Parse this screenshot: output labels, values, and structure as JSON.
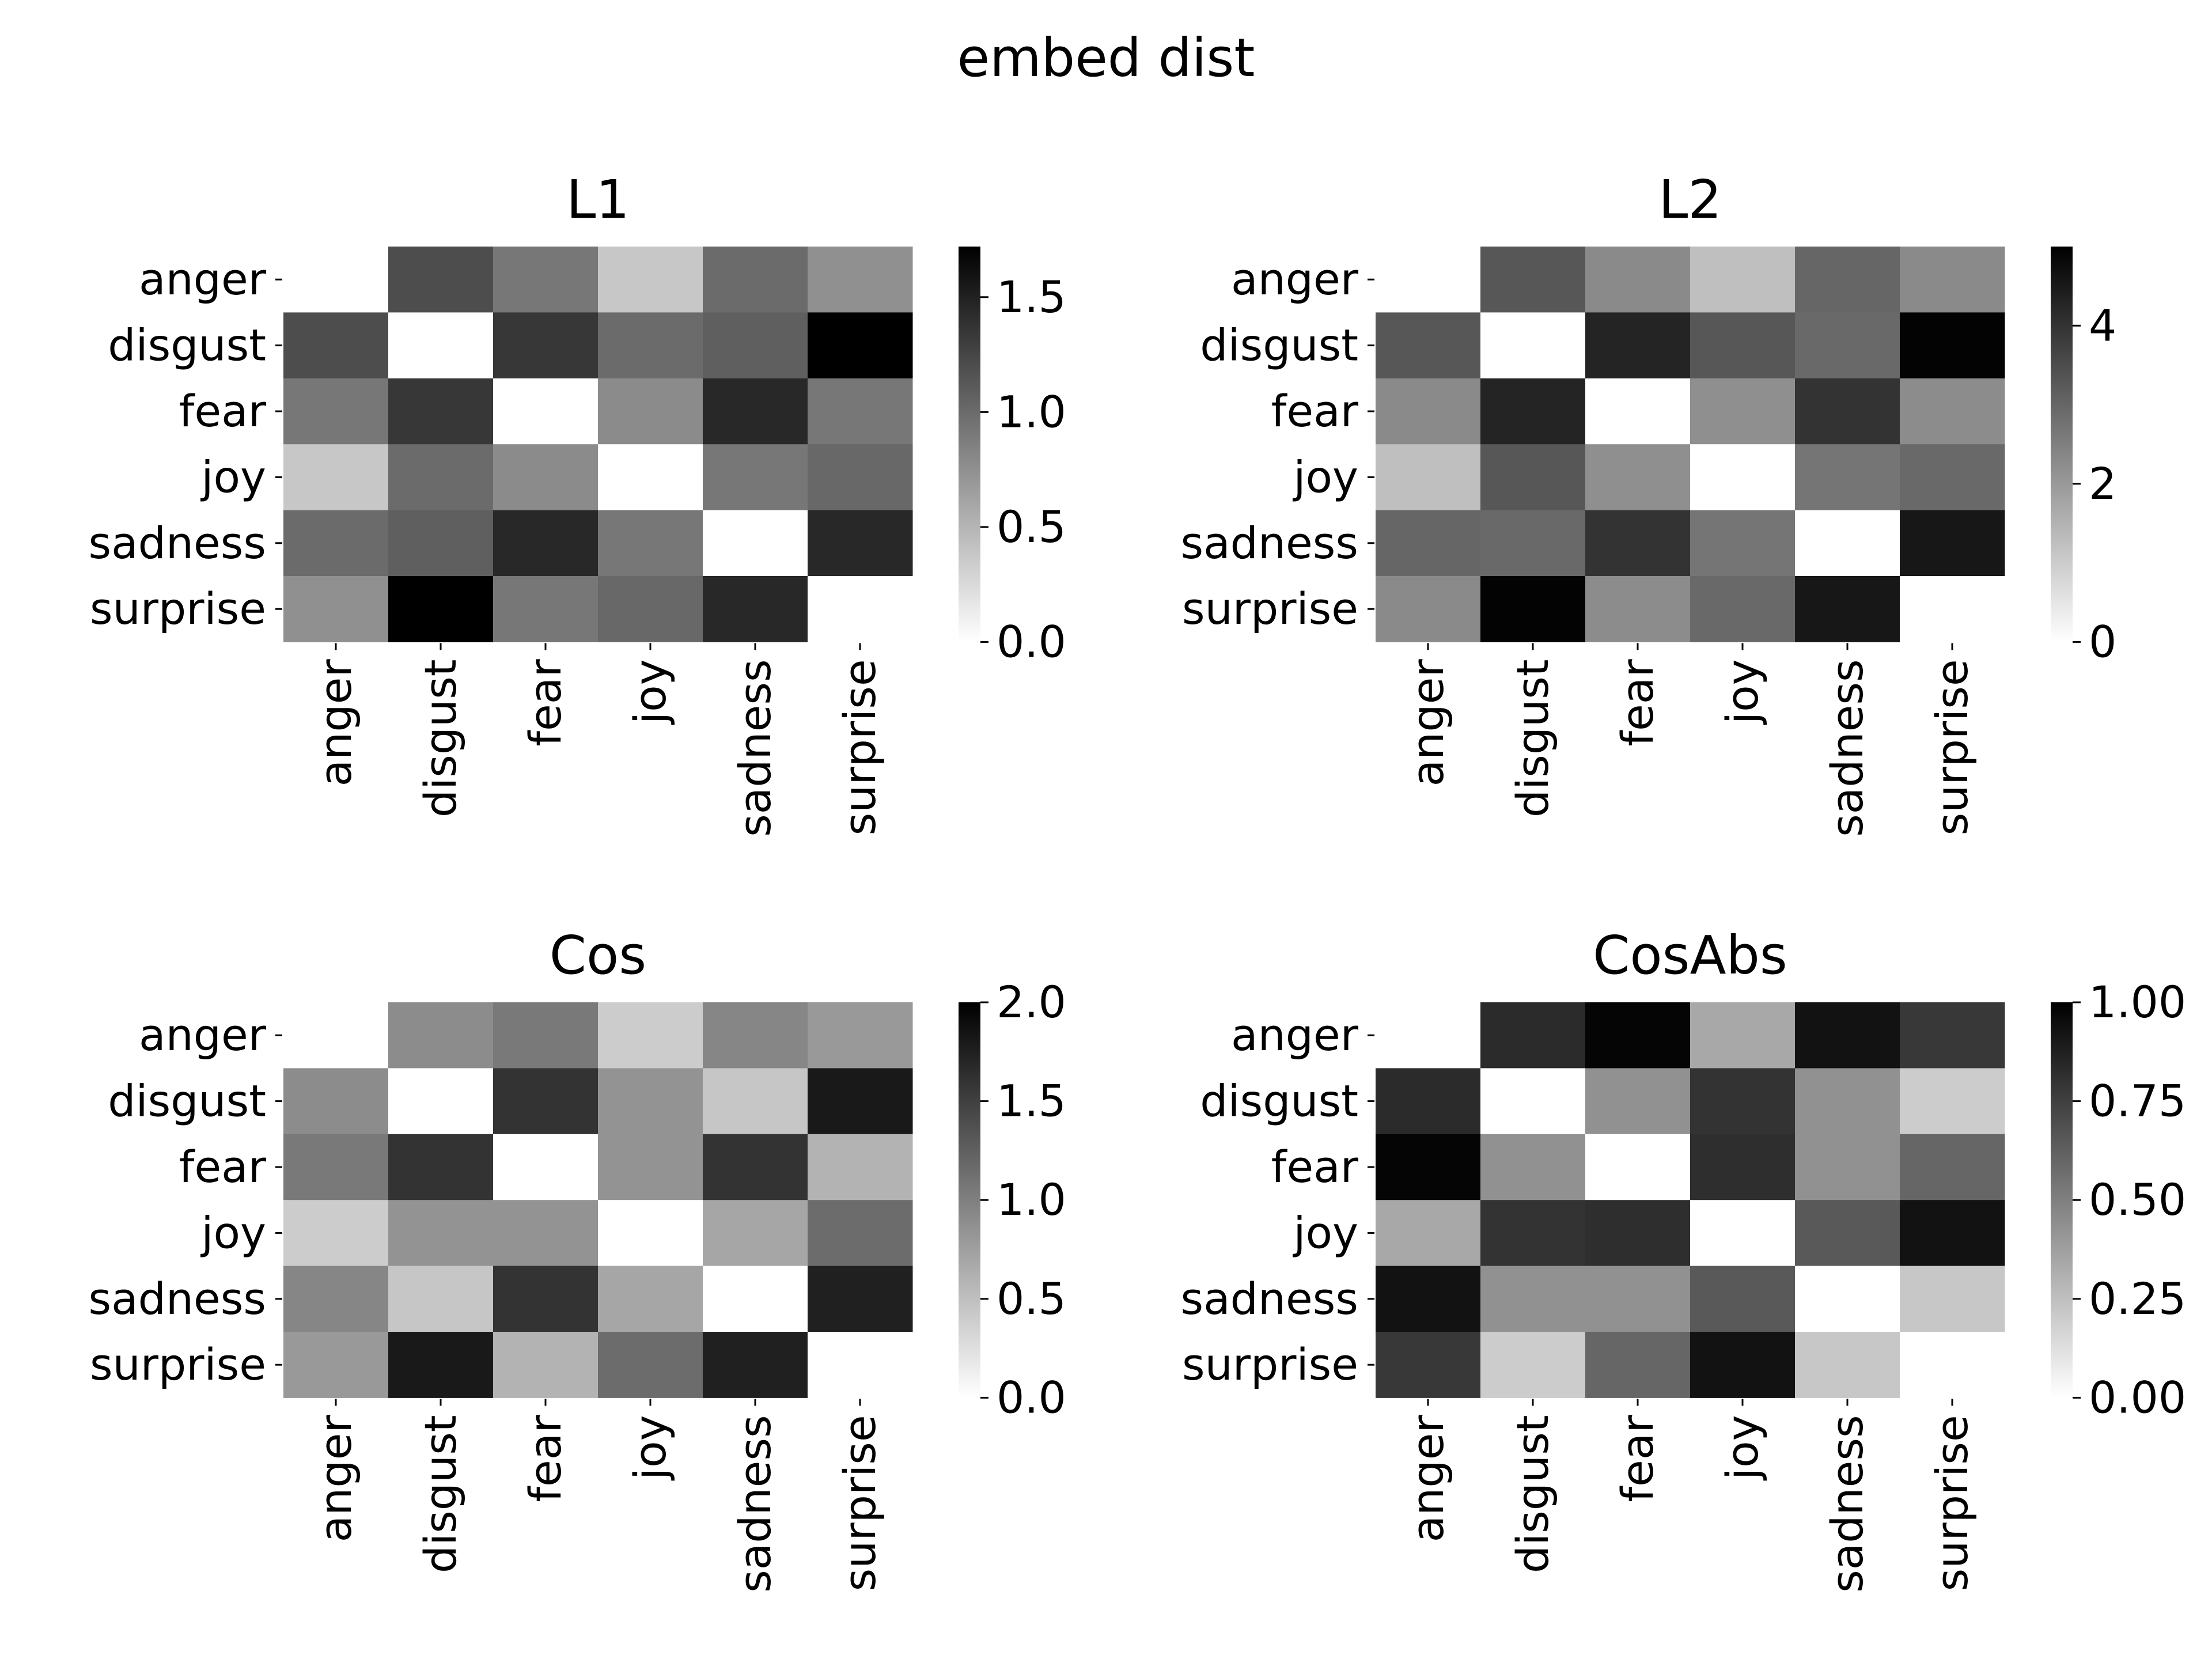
{
  "figure": {
    "suptitle": "embed dist"
  },
  "chart_data": [
    {
      "type": "heatmap",
      "title": "L1",
      "rows": [
        "anger",
        "disgust",
        "fear",
        "joy",
        "sadness",
        "surprise"
      ],
      "cols": [
        "anger",
        "disgust",
        "fear",
        "joy",
        "sadness",
        "surprise"
      ],
      "values": [
        [
          0.0,
          1.2,
          0.92,
          0.38,
          1.0,
          0.75
        ],
        [
          1.2,
          0.0,
          1.35,
          1.0,
          1.08,
          1.72
        ],
        [
          0.92,
          1.35,
          0.0,
          0.78,
          1.45,
          0.92
        ],
        [
          0.38,
          1.0,
          0.78,
          0.0,
          0.92,
          1.02
        ],
        [
          1.0,
          1.08,
          1.45,
          0.92,
          0.0,
          1.45
        ],
        [
          0.75,
          1.72,
          0.92,
          1.02,
          1.45,
          0.0
        ]
      ],
      "colorbar": {
        "vmin": 0.0,
        "vmax": 1.72,
        "ticks": [
          0.0,
          0.5,
          1.0,
          1.5
        ],
        "tick_labels": [
          "0.0",
          "0.5",
          "1.0",
          "1.5"
        ]
      },
      "colormap": "white-to-black"
    },
    {
      "type": "heatmap",
      "title": "L2",
      "rows": [
        "anger",
        "disgust",
        "fear",
        "joy",
        "sadness",
        "surprise"
      ],
      "cols": [
        "anger",
        "disgust",
        "fear",
        "joy",
        "sadness",
        "surprise"
      ],
      "values": [
        [
          0.0,
          3.3,
          2.3,
          1.25,
          3.0,
          2.3
        ],
        [
          3.3,
          0.0,
          4.3,
          3.3,
          2.95,
          4.95
        ],
        [
          2.3,
          4.3,
          0.0,
          2.2,
          4.0,
          2.25
        ],
        [
          1.25,
          3.3,
          2.2,
          0.0,
          2.7,
          2.95
        ],
        [
          3.0,
          2.95,
          4.0,
          2.7,
          0.0,
          4.55
        ],
        [
          2.3,
          4.95,
          2.25,
          2.95,
          4.55,
          0.0
        ]
      ],
      "colorbar": {
        "vmin": 0,
        "vmax": 5.0,
        "ticks": [
          0,
          2,
          4
        ],
        "tick_labels": [
          "0",
          "2",
          "4"
        ]
      },
      "colormap": "white-to-black"
    },
    {
      "type": "heatmap",
      "title": "Cos",
      "rows": [
        "anger",
        "disgust",
        "fear",
        "joy",
        "sadness",
        "surprise"
      ],
      "cols": [
        "anger",
        "disgust",
        "fear",
        "joy",
        "sadness",
        "surprise"
      ],
      "values": [
        [
          0.0,
          0.9,
          1.05,
          0.4,
          0.95,
          0.8
        ],
        [
          0.9,
          0.0,
          1.6,
          0.85,
          0.45,
          1.8
        ],
        [
          1.05,
          1.6,
          0.0,
          0.85,
          1.6,
          0.6
        ],
        [
          0.4,
          0.85,
          0.85,
          0.0,
          0.7,
          1.15
        ],
        [
          0.95,
          0.45,
          1.6,
          0.7,
          0.0,
          1.75
        ],
        [
          0.8,
          1.8,
          0.6,
          1.15,
          1.75,
          0.0
        ]
      ],
      "colorbar": {
        "vmin": 0.0,
        "vmax": 2.0,
        "ticks": [
          0.0,
          0.5,
          1.0,
          1.5,
          2.0
        ],
        "tick_labels": [
          "0.0",
          "0.5",
          "1.0",
          "1.5",
          "2.0"
        ]
      },
      "colormap": "white-to-black"
    },
    {
      "type": "heatmap",
      "title": "CosAbs",
      "rows": [
        "anger",
        "disgust",
        "fear",
        "joy",
        "sadness",
        "surprise"
      ],
      "cols": [
        "anger",
        "disgust",
        "fear",
        "joy",
        "sadness",
        "surprise"
      ],
      "values": [
        [
          0.0,
          0.83,
          0.98,
          0.34,
          0.93,
          0.78
        ],
        [
          0.83,
          0.0,
          0.43,
          0.8,
          0.43,
          0.2
        ],
        [
          0.98,
          0.43,
          0.0,
          0.82,
          0.43,
          0.6
        ],
        [
          0.34,
          0.8,
          0.82,
          0.0,
          0.65,
          0.93
        ],
        [
          0.93,
          0.43,
          0.43,
          0.65,
          0.0,
          0.22
        ],
        [
          0.78,
          0.2,
          0.6,
          0.93,
          0.22,
          0.0
        ]
      ],
      "colorbar": {
        "vmin": 0.0,
        "vmax": 1.0,
        "ticks": [
          0.0,
          0.25,
          0.5,
          0.75,
          1.0
        ],
        "tick_labels": [
          "0.00",
          "0.25",
          "0.50",
          "0.75",
          "1.00"
        ]
      },
      "colormap": "white-to-black"
    }
  ]
}
